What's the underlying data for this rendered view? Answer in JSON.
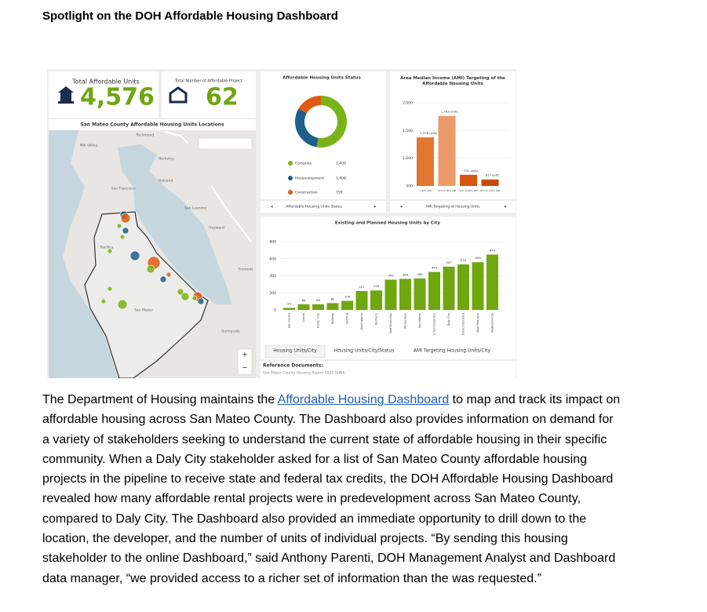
{
  "title": "Spotlight on the DOH Affordable Housing Dashboard",
  "dashboard": {
    "kpis": [
      {
        "label": "Total Affordable Units",
        "value": "4,576"
      },
      {
        "label": "Total Number of Affordable Project",
        "value": "62"
      }
    ],
    "map": {
      "title": "San Mateo County Affordable Housing Units Locations",
      "places": [
        "Richmond",
        "Mill Valley",
        "Berkeley",
        "Oakland",
        "San Francisco",
        "San Leandro",
        "Hayward",
        "Pacifica",
        "Fremont",
        "San Mateo",
        "Sunnyvale"
      ]
    },
    "tabs": [
      "Housing Units/City",
      "Housing Units/City/Status",
      "AMI Targeting Housing Units/City"
    ],
    "reference": {
      "heading": "Reference Documents:",
      "link": "San Mateo County Housing Report 2022 AHNR"
    }
  },
  "chart_data": [
    {
      "type": "donut",
      "title": "Affordable Housing Units Status",
      "categories": [
        "Complete",
        "Predevelopment",
        "Construction"
      ],
      "values": [
        2409,
        1408,
        759
      ],
      "value_labels": [
        "2,409",
        "1,408",
        "759"
      ],
      "colors": [
        "#7ab317",
        "#1f5f8b",
        "#e05a10"
      ],
      "footer": "Affordable Housing Units Status"
    },
    {
      "type": "bar",
      "title": "Area Median Income (AMI) Targeting of the Affordable Housing Units",
      "categories": [
        "< 30% AMI",
        "31% to 50% AMI",
        "51% to 80% AMI",
        "81% to 120% AMI"
      ],
      "values": [
        1376,
        1763,
        701,
        617
      ],
      "value_labels": [
        "1,376 units",
        "1,763 units",
        "701 units",
        "617 units"
      ],
      "colors": [
        "#e2782f",
        "#eb9a6a",
        "#d9540e",
        "#c54a08"
      ],
      "ylim": [
        500,
        2000
      ],
      "yticks": [
        {
          "value": 500,
          "label": "500"
        },
        {
          "value": 1000,
          "label": "1,000"
        },
        {
          "value": 1500,
          "label": "1,500"
        },
        {
          "value": 2000,
          "label": "2,000"
        }
      ],
      "grid": true,
      "footer": "AMI Targeting of Housing Units"
    },
    {
      "type": "bar",
      "title": "Existing and Planned Housing Units by City",
      "categories": [
        "San Carlos",
        "Colma",
        "Foster City",
        "Millbrae",
        "Pacifica",
        "Burlingame",
        "Belmont",
        "Half Moon Bay",
        "Menlo Park",
        "San Mateo",
        "S San Francisco",
        "Daly City",
        "Unincorporated",
        "East Palo Alto",
        "Redwood City"
      ],
      "values": [
        24,
        66,
        66,
        80,
        106,
        221,
        228,
        355,
        364,
        369,
        445,
        507,
        534,
        559,
        649
      ],
      "color": "#6fa70f",
      "ylim": [
        0,
        800
      ],
      "yticks": [
        0,
        200,
        400,
        600,
        800
      ],
      "grid": true
    }
  ],
  "body": {
    "lines": [
      {
        "before": "The Department of Housing maintains the ",
        "link": "Affordable Housing Dashboard",
        "after": " to map and track its impact on"
      },
      "affordable housing across San Mateo County.  The Dashboard also provides information on demand for",
      "a variety of stakeholders seeking to understand the current state of affordable housing in their specific",
      "community.  When a Daly City stakeholder asked for a list of San Mateo County affordable housing",
      "projects in the pipeline to receive state and federal tax credits, the DOH Affordable Housing Dashboard",
      "revealed how many affordable rental projects were in predevelopment across San Mateo County,",
      "compared to Daly City. The Dashboard also provided an immediate opportunity to drill down to the",
      "location, the developer, and the number of units of individual projects.  “By sending this housing",
      "stakeholder to the online Dashboard,” said Anthony Parenti, DOH Management Analyst and Dashboard",
      "data manager, “we provided access to a richer set of information than the was requested.”"
    ]
  }
}
